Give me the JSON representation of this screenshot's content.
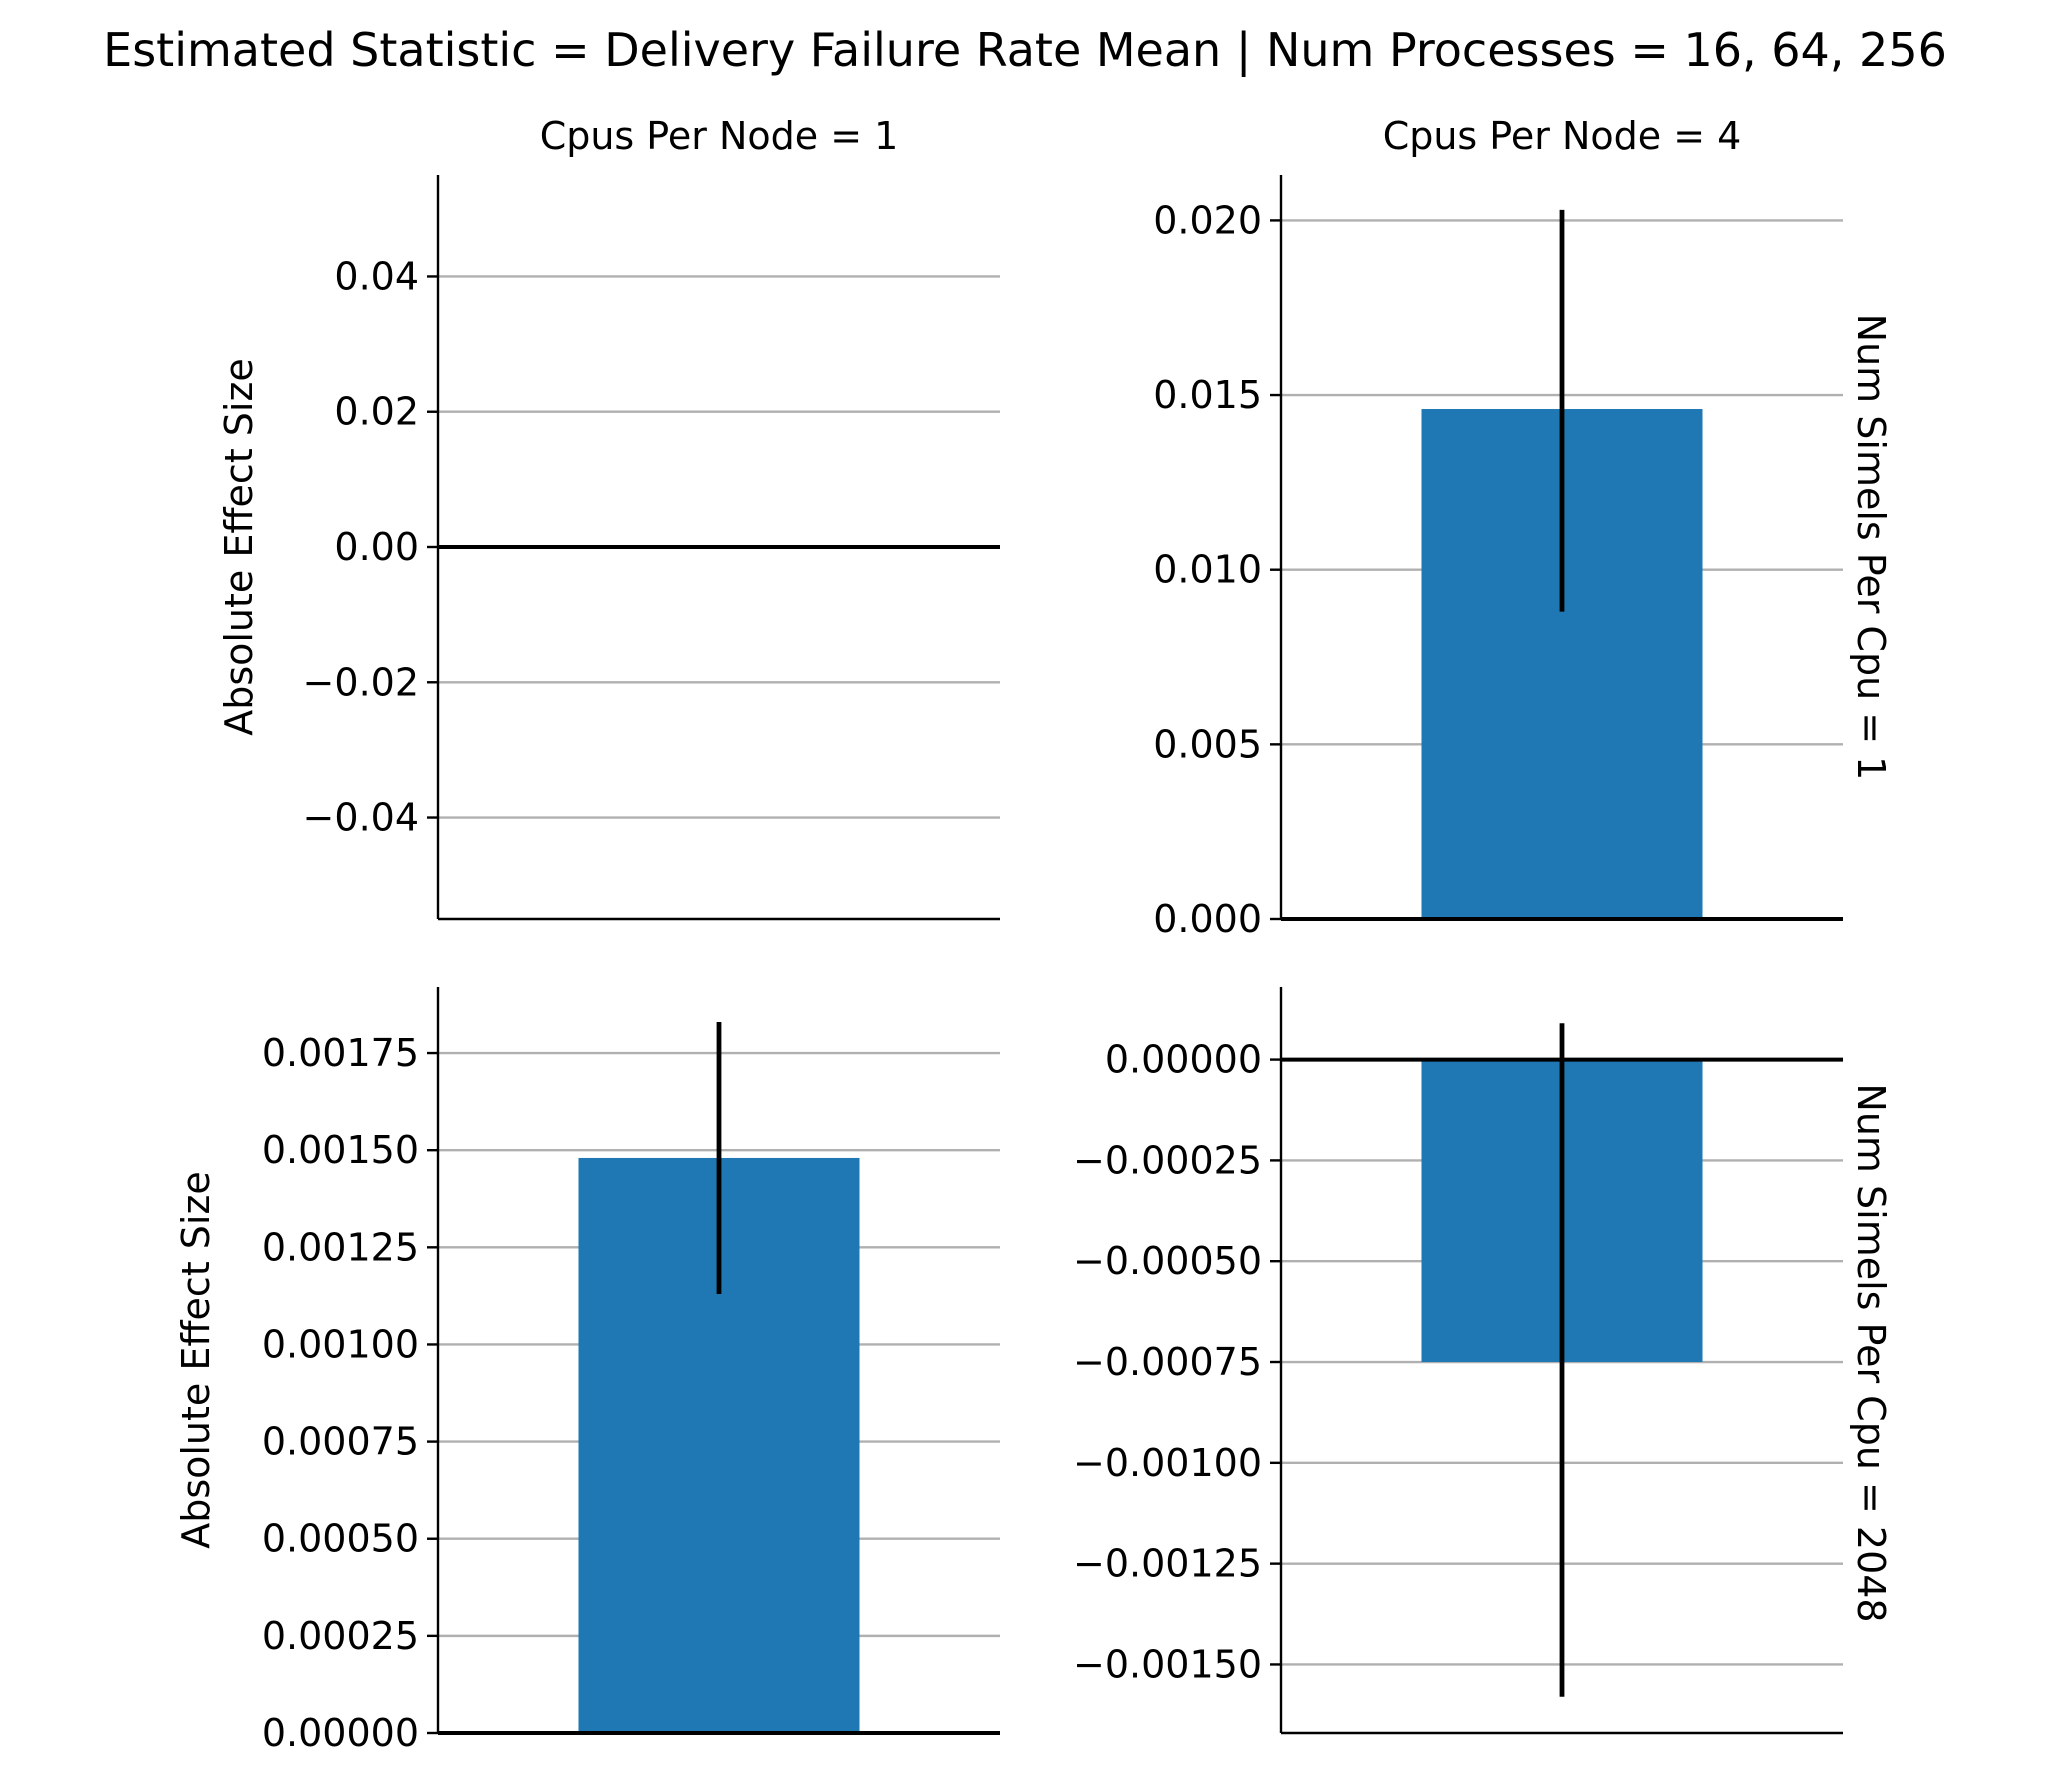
{
  "figure": {
    "suptitle": "Estimated Statistic = Delivery Failure Rate Mean | Num Processes = 16, 64, 256",
    "col_titles": [
      "Cpus Per Node = 1",
      "Cpus Per Node = 4"
    ],
    "row_labels": [
      "Num Simels Per Cpu = 1",
      "Num Simels Per Cpu = 2048"
    ],
    "ylabel": "Absolute Effect Size",
    "colors": {
      "bar": "#1f77b4",
      "errorbar": "#000000",
      "grid": "#b0b0b0",
      "zero_line": "#000000"
    }
  },
  "chart_data": [
    {
      "type": "bar",
      "panel": "row 1, col 1",
      "title": "Cpus Per Node = 1",
      "ylabel": "Absolute Effect Size",
      "values": [],
      "ylim": [
        -0.055,
        0.055
      ],
      "yticks": [
        -0.04,
        -0.02,
        0.0,
        0.02,
        0.04
      ],
      "ytick_labels": [
        "−0.04",
        "−0.02",
        "0.00",
        "0.02",
        "0.04"
      ],
      "grid": "y"
    },
    {
      "type": "bar",
      "panel": "row 1, col 2",
      "title": "Cpus Per Node = 4",
      "row_label": "Num Simels Per Cpu = 1",
      "values": [
        0.0146
      ],
      "error_low": [
        0.0088
      ],
      "error_high": [
        0.0203
      ],
      "ylim": [
        0.0,
        0.0213
      ],
      "yticks": [
        0.0,
        0.005,
        0.01,
        0.015,
        0.02
      ],
      "ytick_labels": [
        "0.000",
        "0.005",
        "0.010",
        "0.015",
        "0.020"
      ],
      "grid": "y"
    },
    {
      "type": "bar",
      "panel": "row 2, col 1",
      "ylabel": "Absolute Effect Size",
      "values": [
        0.00148
      ],
      "error_low": [
        0.00113
      ],
      "error_high": [
        0.00183
      ],
      "ylim": [
        0.0,
        0.00192
      ],
      "yticks": [
        0.0,
        0.00025,
        0.0005,
        0.00075,
        0.001,
        0.00125,
        0.0015,
        0.00175
      ],
      "ytick_labels": [
        "0.00000",
        "0.00025",
        "0.00050",
        "0.00075",
        "0.00100",
        "0.00125",
        "0.00150",
        "0.00175"
      ],
      "grid": "y"
    },
    {
      "type": "bar",
      "panel": "row 2, col 2",
      "row_label": "Num Simels Per Cpu = 2048",
      "values": [
        -0.00075
      ],
      "error_low": [
        -0.00158
      ],
      "error_high": [
        9e-05
      ],
      "ylim": [
        -0.00167,
        0.00018
      ],
      "yticks": [
        -0.0015,
        -0.00125,
        -0.001,
        -0.00075,
        -0.0005,
        -0.00025,
        0.0
      ],
      "ytick_labels": [
        "−0.00150",
        "−0.00125",
        "−0.00100",
        "−0.00075",
        "−0.00050",
        "−0.00025",
        "0.00000"
      ],
      "grid": "y"
    }
  ]
}
